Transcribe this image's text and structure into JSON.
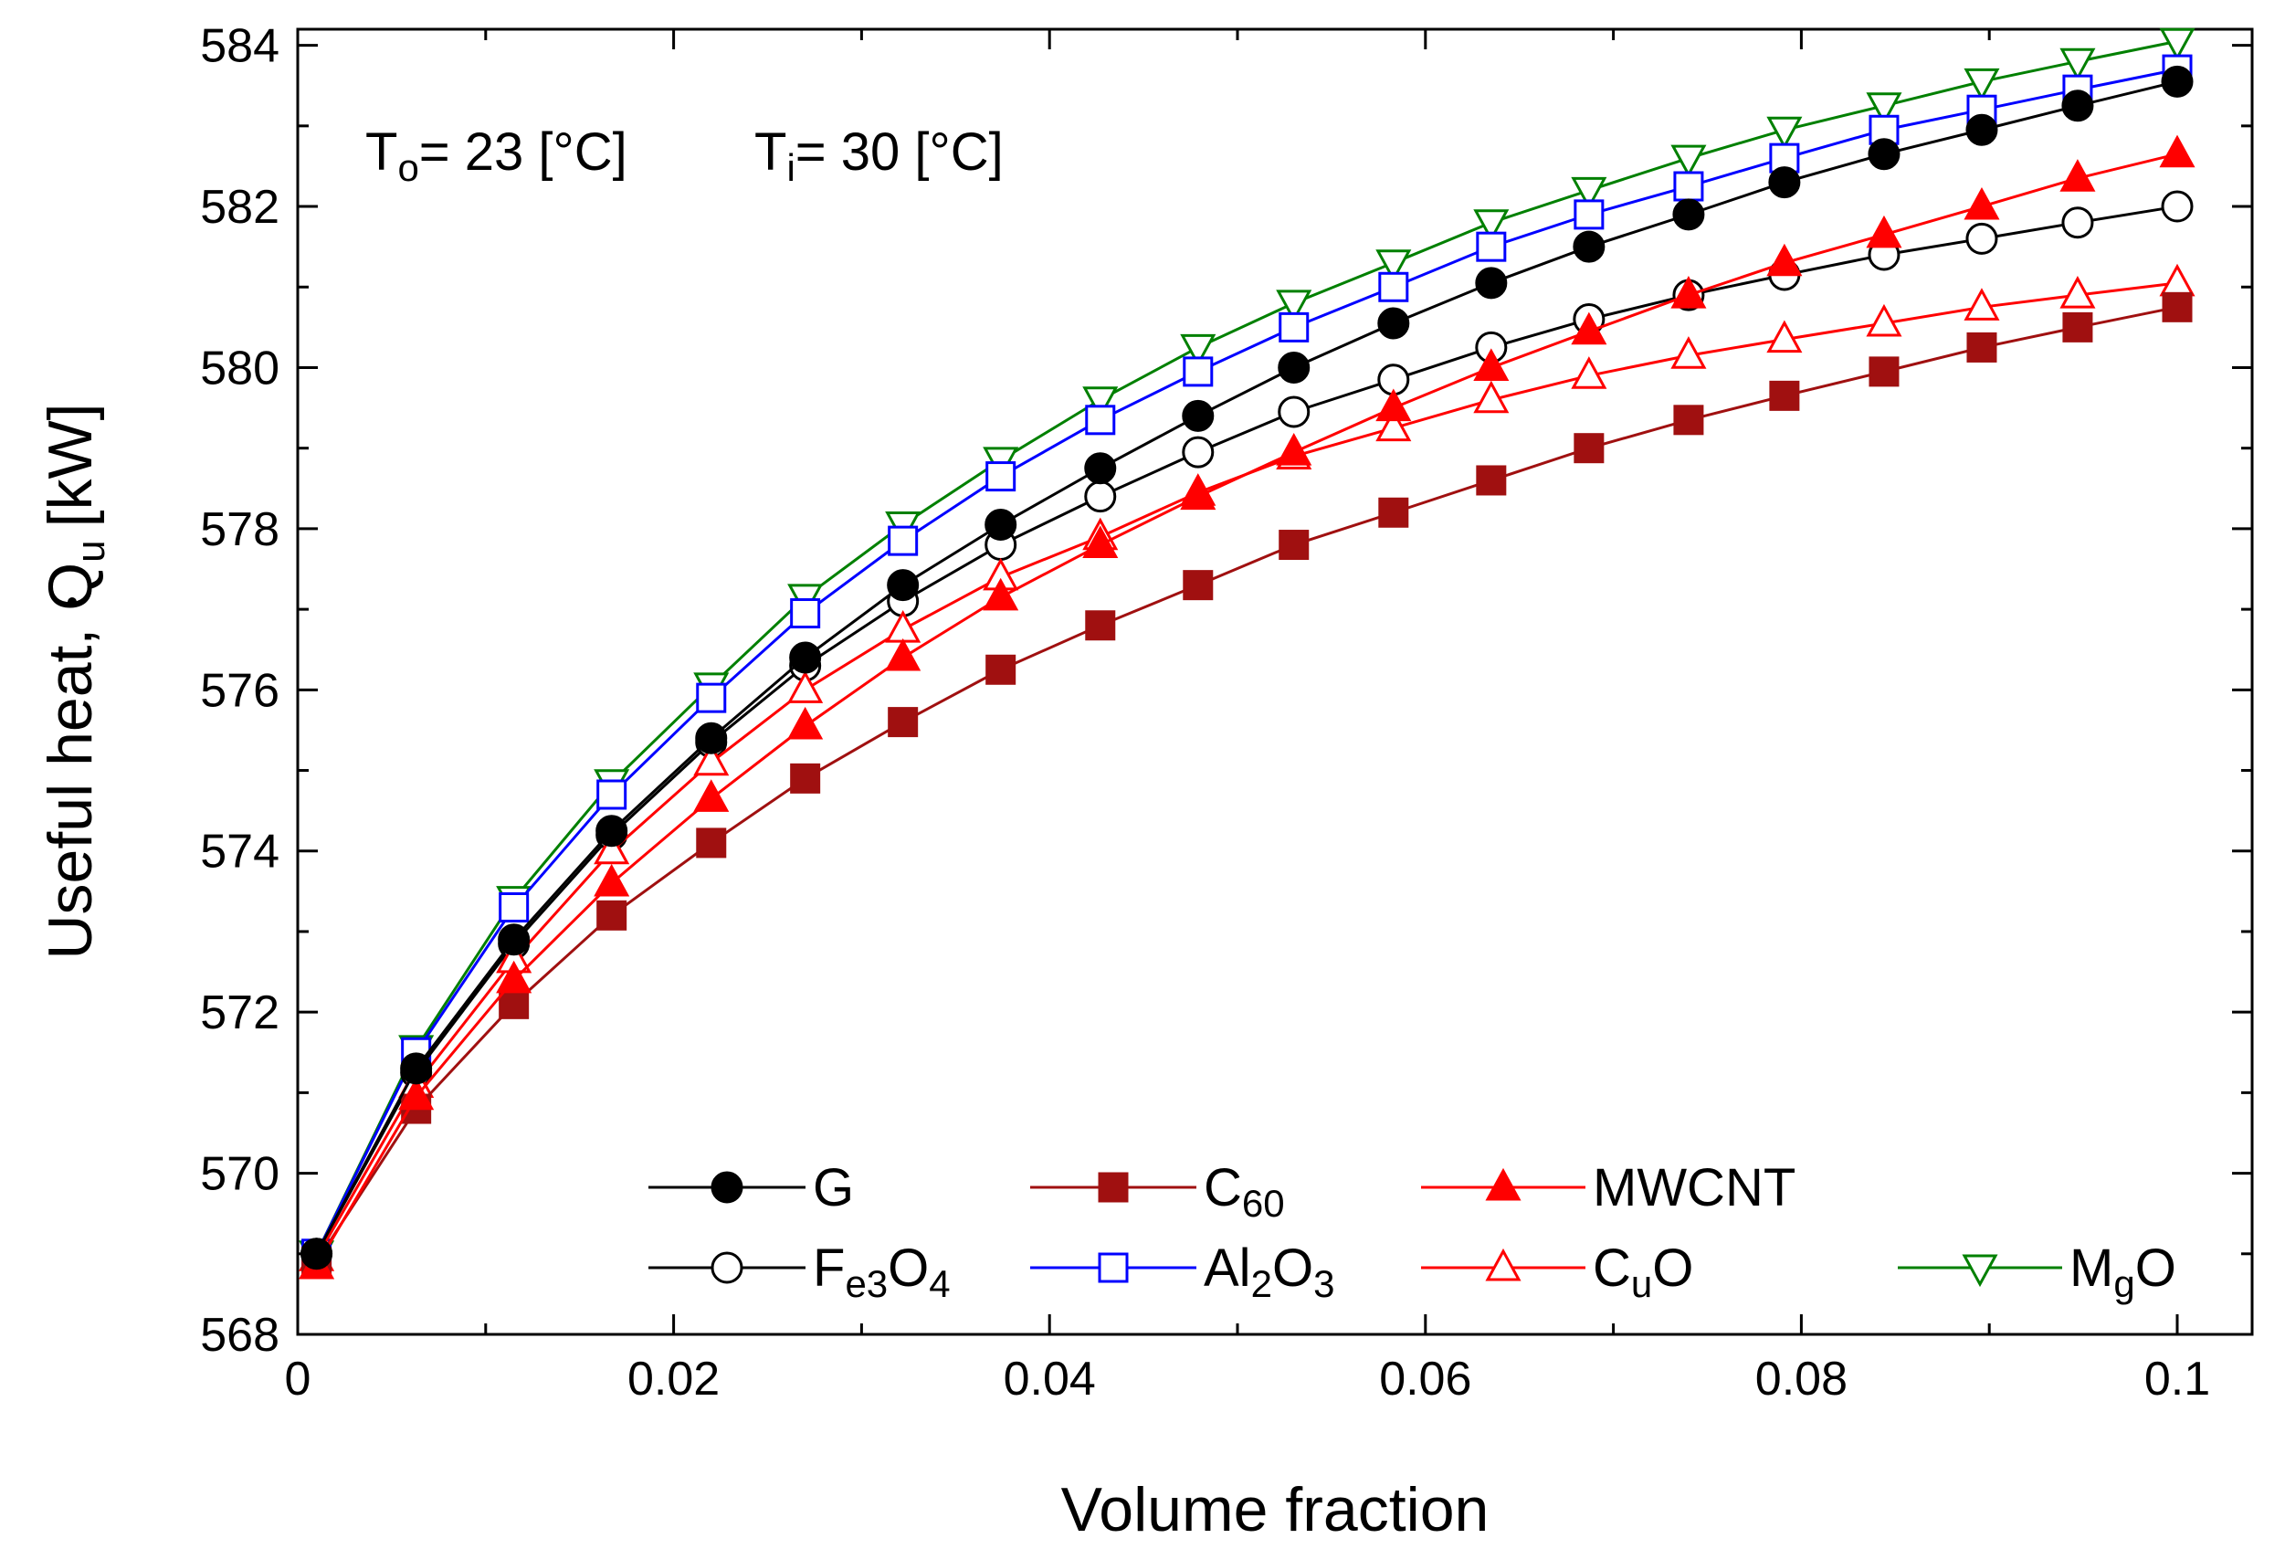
{
  "chart_data": {
    "type": "line",
    "title": "",
    "xlabel": "Volume fraction",
    "ylabel": "Useful heat, Q",
    "ylabel_sub": "u",
    "ylabel_unit": "[kW]",
    "xlim": [
      0,
      0.1
    ],
    "ylim": [
      568,
      584.2
    ],
    "xticks": [
      0,
      0.02,
      0.04,
      0.06,
      0.08,
      0.1
    ],
    "xtick_labels": [
      "0",
      "0.02",
      "0.04",
      "0.06",
      "0.08",
      "0.1"
    ],
    "yticks": [
      568,
      570,
      572,
      574,
      576,
      578,
      580,
      582,
      584
    ],
    "ytick_labels": [
      "568",
      "570",
      "572",
      "574",
      "576",
      "578",
      "580",
      "582",
      "584"
    ],
    "annotations": [
      {
        "main": "T",
        "sub": "o",
        "rest": "= 23 [°C]"
      },
      {
        "main": "T",
        "sub": "i",
        "rest": "= 30 [°C]"
      }
    ],
    "x": [
      0.001,
      0.0063,
      0.0115,
      0.0167,
      0.022,
      0.027,
      0.0322,
      0.0374,
      0.0427,
      0.0479,
      0.053,
      0.0583,
      0.0635,
      0.0687,
      0.074,
      0.0791,
      0.0844,
      0.0896,
      0.0947,
      0.1
    ],
    "series": [
      {
        "name": "G",
        "legend": [
          {
            "t": "G",
            "s": false
          }
        ],
        "color": "#000000",
        "marker": "circle",
        "filled": true,
        "values": [
          569.0,
          571.3,
          572.9,
          574.25,
          575.4,
          576.4,
          577.3,
          578.05,
          578.75,
          579.4,
          580.0,
          580.55,
          581.05,
          581.5,
          581.9,
          582.3,
          582.65,
          582.95,
          583.25,
          583.55
        ]
      },
      {
        "name": "C60",
        "legend": [
          {
            "t": "C",
            "s": false
          },
          {
            "t": "60",
            "s": true
          }
        ],
        "color": "#a01010",
        "marker": "square",
        "filled": true,
        "values": [
          568.9,
          570.8,
          572.1,
          573.2,
          574.1,
          574.9,
          575.6,
          576.25,
          576.8,
          577.3,
          577.8,
          578.2,
          578.6,
          579.0,
          579.35,
          579.65,
          579.95,
          580.25,
          580.5,
          580.75
        ]
      },
      {
        "name": "MWCNT",
        "legend": [
          {
            "t": "MWCNT",
            "s": false
          }
        ],
        "color": "#ff0000",
        "marker": "triangle-up",
        "filled": true,
        "values": [
          568.85,
          570.95,
          572.4,
          573.6,
          574.65,
          575.55,
          576.4,
          577.15,
          577.8,
          578.4,
          578.95,
          579.5,
          580.0,
          580.45,
          580.9,
          581.3,
          581.65,
          582.0,
          582.35,
          582.65
        ]
      },
      {
        "name": "Fe3O4",
        "legend": [
          {
            "t": "F",
            "s": false
          },
          {
            "t": "e3",
            "s": true
          },
          {
            "t": "O",
            "s": false
          },
          {
            "t": "4",
            "s": true
          }
        ],
        "color": "#000000",
        "marker": "circle",
        "filled": false,
        "values": [
          569.0,
          571.25,
          572.85,
          574.2,
          575.35,
          576.3,
          577.1,
          577.8,
          578.4,
          578.95,
          579.45,
          579.85,
          580.25,
          580.6,
          580.9,
          581.15,
          581.4,
          581.6,
          581.8,
          582.0
        ]
      },
      {
        "name": "Al2O3",
        "legend": [
          {
            "t": "Al",
            "s": false
          },
          {
            "t": "2",
            "s": true
          },
          {
            "t": "O",
            "s": false
          },
          {
            "t": "3",
            "s": true
          }
        ],
        "color": "#0000ff",
        "marker": "square",
        "filled": false,
        "values": [
          569.0,
          571.5,
          573.3,
          574.7,
          575.9,
          576.95,
          577.85,
          578.65,
          579.35,
          579.95,
          580.5,
          581.0,
          581.5,
          581.9,
          582.25,
          582.6,
          582.95,
          583.2,
          583.45,
          583.7
        ]
      },
      {
        "name": "CuO",
        "legend": [
          {
            "t": "C",
            "s": false
          },
          {
            "t": "u",
            "s": true
          },
          {
            "t": "O",
            "s": false
          }
        ],
        "color": "#ff0000",
        "marker": "triangle-up",
        "filled": false,
        "values": [
          568.95,
          571.1,
          572.65,
          574.0,
          575.1,
          576.0,
          576.75,
          577.4,
          577.9,
          578.45,
          578.9,
          579.25,
          579.6,
          579.9,
          580.15,
          580.35,
          580.55,
          580.75,
          580.9,
          581.05
        ]
      },
      {
        "name": "MgO",
        "legend": [
          {
            "t": "M",
            "s": false
          },
          {
            "t": "g",
            "s": true
          },
          {
            "t": "O",
            "s": false
          }
        ],
        "color": "#008000",
        "marker": "triangle-down",
        "filled": false,
        "values": [
          569.0,
          571.55,
          573.4,
          574.85,
          576.05,
          577.15,
          578.05,
          578.85,
          579.6,
          580.25,
          580.8,
          581.3,
          581.8,
          582.2,
          582.6,
          582.95,
          583.25,
          583.55,
          583.8,
          584.05
        ]
      }
    ]
  }
}
